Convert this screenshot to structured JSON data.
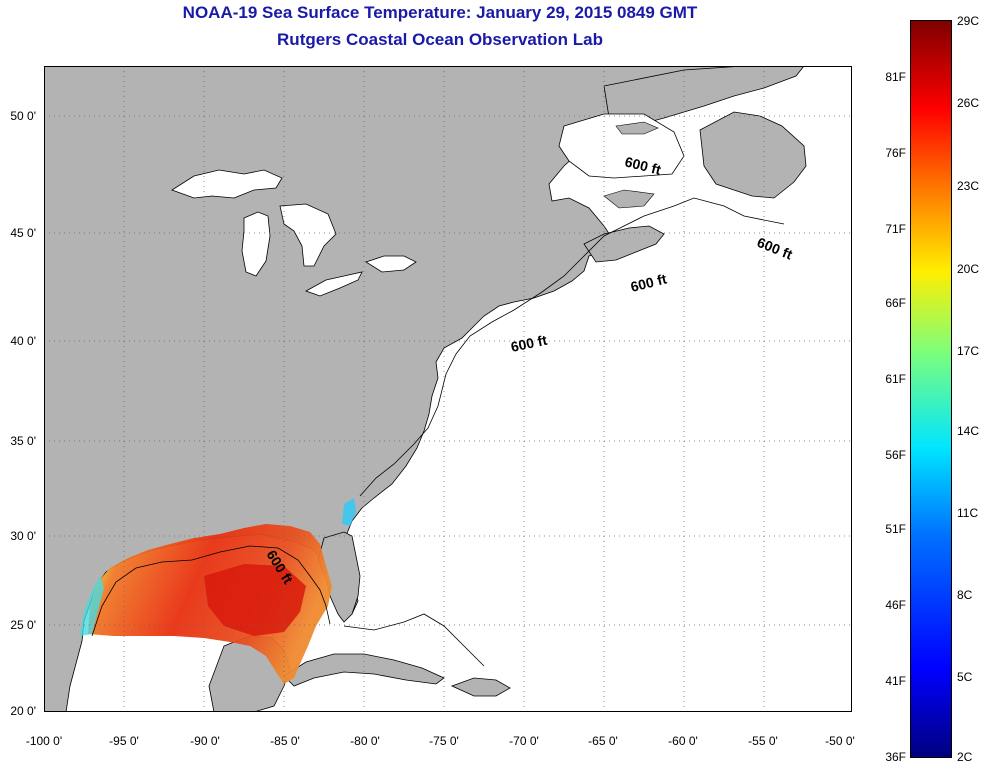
{
  "title": "NOAA-19 Sea Surface Temperature:  January 29, 2015 0849 GMT",
  "subtitle": "Rutgers Coastal Ocean Observation Lab",
  "lat_labels": [
    "50 0'",
    "45 0'",
    "40 0'",
    "35 0'",
    "30 0'",
    "25 0'",
    "20 0'"
  ],
  "lon_labels": [
    "-100 0'",
    "-95 0'",
    "-90 0'",
    "-85 0'",
    "-80 0'",
    "-75 0'",
    "-70 0'",
    "-65 0'",
    "-60 0'",
    "-55 0'",
    "-50 0'"
  ],
  "contour_label": "600 ft",
  "colorbar": {
    "f_labels": [
      "81F",
      "76F",
      "71F",
      "66F",
      "61F",
      "56F",
      "51F",
      "46F",
      "41F",
      "36F"
    ],
    "c_labels": [
      "29C",
      "26C",
      "23C",
      "20C",
      "17C",
      "14C",
      "11C",
      "8C",
      "5C",
      "2C"
    ]
  },
  "colors": {
    "title": "#1a1aa8",
    "land": "#b3b3b3",
    "water": "#ffffff"
  }
}
